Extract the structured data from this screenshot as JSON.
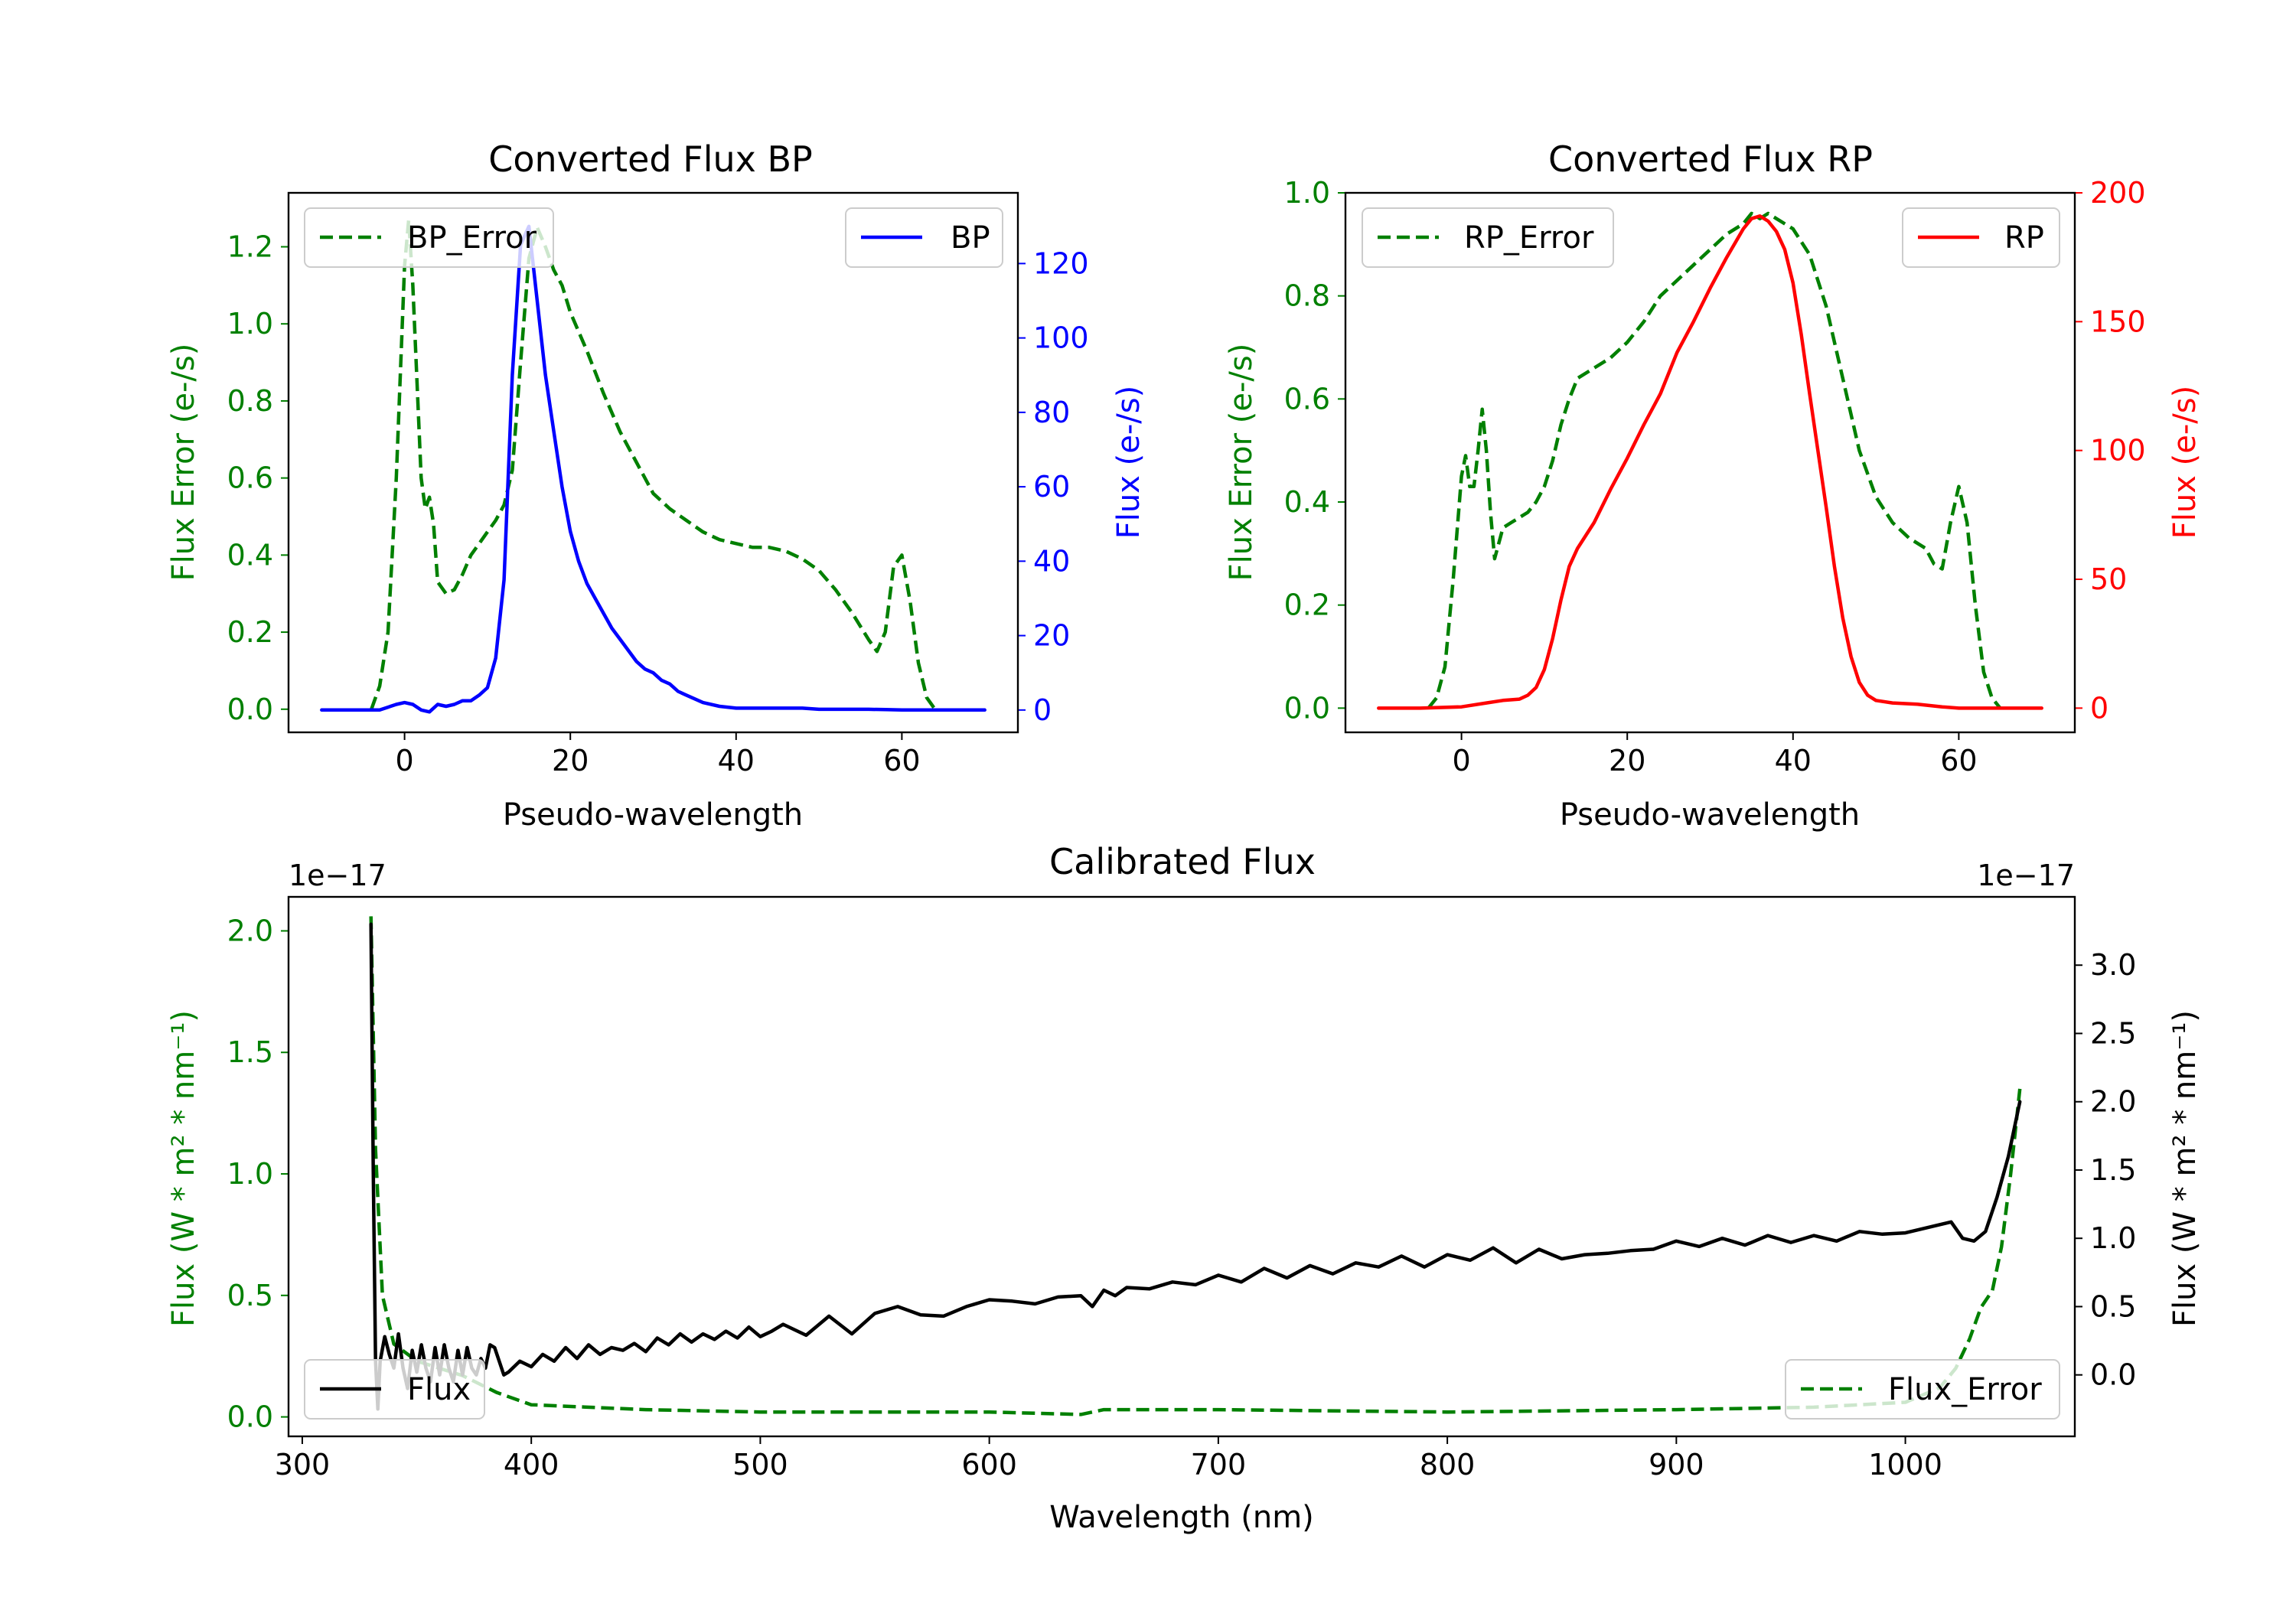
{
  "colors": {
    "bp": "#0000ff",
    "rp": "#ff0000",
    "error": "#008000",
    "flux": "#000000",
    "axis": "#000000"
  },
  "chart_data": [
    {
      "id": "bp",
      "type": "line",
      "title": "Converted Flux BP",
      "xlabel": "Pseudo-wavelength",
      "ylabel_left": "Flux Error (e-/s)",
      "ylabel_right": "Flux (e-/s)",
      "xlim": [
        -14,
        74
      ],
      "ylim_left": [
        -0.06,
        1.34
      ],
      "ylim_right": [
        -6,
        139
      ],
      "xticks": [
        0,
        20,
        40,
        60
      ],
      "yticks_left": [
        0.0,
        0.2,
        0.4,
        0.6,
        0.8,
        1.0,
        1.2
      ],
      "yticks_right": [
        0,
        20,
        40,
        60,
        80,
        100,
        120
      ],
      "legend_left": {
        "label": "BP_Error",
        "position": "upper left"
      },
      "legend_right": {
        "label": "BP",
        "position": "upper right"
      },
      "series": [
        {
          "name": "BP_Error",
          "axis": "left",
          "style": "dashed",
          "color": "#008000",
          "x": [
            -4,
            -3,
            -2,
            -1,
            0,
            0.5,
            1,
            2,
            2.5,
            3,
            3.5,
            4,
            5,
            6,
            7,
            8,
            9,
            10,
            11,
            12,
            13,
            14,
            15,
            16,
            17,
            18,
            19,
            20,
            22,
            24,
            26,
            28,
            30,
            32,
            34,
            36,
            38,
            40,
            42,
            44,
            46,
            48,
            50,
            52,
            54,
            56,
            57,
            58,
            59,
            60,
            61,
            62,
            63,
            64
          ],
          "y": [
            0.0,
            0.06,
            0.2,
            0.6,
            1.15,
            1.27,
            1.1,
            0.6,
            0.52,
            0.55,
            0.48,
            0.33,
            0.3,
            0.31,
            0.35,
            0.4,
            0.43,
            0.46,
            0.49,
            0.53,
            0.62,
            0.9,
            1.17,
            1.25,
            1.2,
            1.14,
            1.1,
            1.03,
            0.93,
            0.82,
            0.72,
            0.64,
            0.56,
            0.52,
            0.49,
            0.46,
            0.44,
            0.43,
            0.42,
            0.42,
            0.41,
            0.39,
            0.36,
            0.31,
            0.25,
            0.18,
            0.15,
            0.2,
            0.37,
            0.4,
            0.28,
            0.12,
            0.03,
            0.0
          ]
        },
        {
          "name": "BP",
          "axis": "right",
          "style": "solid",
          "color": "#0000ff",
          "x": [
            -10,
            -6,
            -3,
            -1,
            0,
            1,
            2,
            3,
            4,
            5,
            6,
            7,
            8,
            9,
            10,
            11,
            12,
            13,
            14,
            15,
            16,
            17,
            18,
            19,
            20,
            21,
            22,
            23,
            24,
            25,
            26,
            27,
            28,
            29,
            30,
            31,
            32,
            33,
            34,
            36,
            38,
            40,
            42,
            44,
            46,
            48,
            50,
            52,
            54,
            56,
            58,
            60,
            62,
            65,
            70
          ],
          "y": [
            0,
            0,
            0,
            1.5,
            2,
            1.5,
            0,
            -0.5,
            1.5,
            1,
            1.5,
            2.5,
            2.5,
            4,
            6,
            14,
            35,
            90,
            125,
            130,
            110,
            90,
            75,
            60,
            48,
            40,
            34,
            30,
            26,
            22,
            19,
            16,
            13,
            11,
            10,
            8,
            7,
            5,
            4,
            2,
            1,
            0.5,
            0.5,
            0.5,
            0.5,
            0.5,
            0.2,
            0.2,
            0.2,
            0.2,
            0.1,
            0,
            0,
            0,
            0
          ]
        }
      ]
    },
    {
      "id": "rp",
      "type": "line",
      "title": "Converted Flux RP",
      "xlabel": "Pseudo-wavelength",
      "ylabel_left": "Flux Error (e-/s)",
      "ylabel_right": "Flux (e-/s)",
      "xlim": [
        -14,
        74
      ],
      "ylim_left": [
        -0.047,
        1.0
      ],
      "ylim_right": [
        -9.4,
        200
      ],
      "xticks": [
        0,
        20,
        40,
        60
      ],
      "yticks_left": [
        0.0,
        0.2,
        0.4,
        0.6,
        0.8,
        1.0
      ],
      "yticks_right": [
        0,
        50,
        100,
        150,
        200
      ],
      "legend_left": {
        "label": "RP_Error",
        "position": "upper left"
      },
      "legend_right": {
        "label": "RP",
        "position": "upper right"
      },
      "series": [
        {
          "name": "RP_Error",
          "axis": "left",
          "style": "dashed",
          "color": "#008000",
          "x": [
            -4,
            -3,
            -2,
            -1,
            0,
            0.5,
            1,
            1.5,
            2,
            2.5,
            3,
            3.5,
            4,
            5,
            6,
            7,
            8,
            9,
            10,
            11,
            12,
            13,
            14,
            16,
            18,
            20,
            22,
            24,
            26,
            28,
            30,
            32,
            34,
            35,
            36,
            37,
            38,
            40,
            42,
            44,
            46,
            48,
            50,
            52,
            54,
            56,
            57,
            58,
            59,
            60,
            61,
            62,
            63,
            64,
            65
          ],
          "y": [
            0.0,
            0.02,
            0.08,
            0.25,
            0.45,
            0.49,
            0.43,
            0.43,
            0.5,
            0.58,
            0.5,
            0.38,
            0.29,
            0.35,
            0.36,
            0.37,
            0.38,
            0.4,
            0.43,
            0.48,
            0.55,
            0.6,
            0.64,
            0.66,
            0.68,
            0.71,
            0.75,
            0.8,
            0.83,
            0.86,
            0.89,
            0.92,
            0.94,
            0.96,
            0.95,
            0.96,
            0.95,
            0.93,
            0.88,
            0.78,
            0.64,
            0.5,
            0.41,
            0.36,
            0.33,
            0.31,
            0.28,
            0.27,
            0.36,
            0.43,
            0.36,
            0.2,
            0.07,
            0.02,
            0.0
          ]
        },
        {
          "name": "RP",
          "axis": "right",
          "style": "solid",
          "color": "#ff0000",
          "x": [
            -10,
            -5,
            0,
            3,
            5,
            7,
            8,
            9,
            10,
            11,
            12,
            13,
            14,
            16,
            18,
            20,
            22,
            24,
            26,
            28,
            30,
            32,
            34,
            35,
            36,
            37,
            38,
            39,
            40,
            41,
            42,
            43,
            44,
            45,
            46,
            47,
            48,
            49,
            50,
            52,
            55,
            58,
            60,
            65,
            70
          ],
          "y": [
            0,
            0,
            0.5,
            2,
            3,
            3.5,
            5,
            8,
            15,
            27,
            42,
            55,
            62,
            72,
            85,
            97,
            110,
            122,
            138,
            150,
            163,
            175,
            186,
            190,
            191,
            189,
            185,
            178,
            165,
            145,
            122,
            100,
            78,
            55,
            35,
            20,
            10,
            5,
            3,
            2,
            1.5,
            0.5,
            0,
            0,
            0
          ]
        }
      ]
    },
    {
      "id": "calibrated",
      "type": "line",
      "title": "Calibrated Flux",
      "xlabel": "Wavelength (nm)",
      "ylabel_left": "Flux (W * m² * nm⁻¹)",
      "ylabel_right": "Flux (W * m² * nm⁻¹)",
      "offset_left": "1e−17",
      "offset_right": "1e−17",
      "xlim": [
        294,
        1074
      ],
      "ylim_left": [
        -0.08,
        2.14
      ],
      "ylim_right": [
        -0.45,
        3.5
      ],
      "xticks": [
        300,
        400,
        500,
        600,
        700,
        800,
        900,
        1000
      ],
      "yticks_left": [
        0.0,
        0.5,
        1.0,
        1.5,
        2.0
      ],
      "yticks_right": [
        0.0,
        0.5,
        1.0,
        1.5,
        2.0,
        2.5,
        3.0
      ],
      "legend_left": {
        "label": "Flux",
        "position": "lower left"
      },
      "legend_right": {
        "label": "Flux_Error",
        "position": "lower right"
      },
      "series": [
        {
          "name": "Flux_Error",
          "axis": "left",
          "style": "dashed",
          "color": "#008000",
          "x": [
            330,
            332,
            335,
            340,
            350,
            360,
            370,
            385,
            400,
            450,
            500,
            550,
            600,
            640,
            650,
            700,
            800,
            900,
            960,
            1000,
            1015,
            1022,
            1028,
            1033,
            1038,
            1042,
            1046,
            1050
          ],
          "y": [
            2.06,
            1.1,
            0.5,
            0.3,
            0.23,
            0.2,
            0.17,
            0.1,
            0.05,
            0.03,
            0.02,
            0.02,
            0.02,
            0.01,
            0.03,
            0.03,
            0.02,
            0.03,
            0.04,
            0.06,
            0.12,
            0.2,
            0.32,
            0.45,
            0.52,
            0.7,
            1.0,
            1.35
          ]
        },
        {
          "name": "Flux",
          "axis": "right",
          "style": "solid",
          "color": "#000000",
          "x": [
            330,
            331,
            332,
            333,
            334,
            336,
            338,
            340,
            342,
            344,
            346,
            348,
            350,
            352,
            354,
            356,
            358,
            360,
            362,
            364,
            366,
            368,
            370,
            372,
            374,
            376,
            378,
            380,
            382,
            384,
            386,
            388,
            390,
            395,
            400,
            405,
            410,
            415,
            420,
            425,
            430,
            435,
            440,
            445,
            450,
            455,
            460,
            465,
            470,
            475,
            480,
            485,
            490,
            495,
            500,
            505,
            510,
            520,
            530,
            540,
            550,
            560,
            570,
            580,
            590,
            600,
            610,
            620,
            630,
            640,
            645,
            650,
            655,
            660,
            670,
            680,
            690,
            700,
            710,
            720,
            730,
            740,
            750,
            760,
            770,
            780,
            790,
            800,
            810,
            820,
            830,
            840,
            850,
            860,
            870,
            880,
            890,
            900,
            910,
            920,
            930,
            940,
            950,
            960,
            970,
            980,
            990,
            1000,
            1010,
            1020,
            1025,
            1030,
            1035,
            1040,
            1045,
            1050
          ],
          "y": [
            3.3,
            1.5,
            0.1,
            -0.25,
            0.1,
            0.28,
            0.15,
            0.05,
            0.3,
            0.05,
            -0.1,
            0.18,
            0.02,
            0.22,
            0.05,
            -0.05,
            0.2,
            0.0,
            0.22,
            0.05,
            -0.05,
            0.18,
            0.0,
            0.2,
            0.05,
            0.0,
            0.12,
            0.05,
            0.22,
            0.2,
            0.1,
            0.0,
            0.02,
            0.1,
            0.06,
            0.15,
            0.1,
            0.2,
            0.12,
            0.22,
            0.15,
            0.2,
            0.18,
            0.23,
            0.17,
            0.27,
            0.22,
            0.3,
            0.24,
            0.3,
            0.26,
            0.32,
            0.27,
            0.35,
            0.28,
            0.32,
            0.37,
            0.29,
            0.43,
            0.3,
            0.45,
            0.5,
            0.44,
            0.43,
            0.5,
            0.55,
            0.54,
            0.52,
            0.57,
            0.58,
            0.5,
            0.62,
            0.58,
            0.64,
            0.63,
            0.68,
            0.66,
            0.73,
            0.68,
            0.78,
            0.71,
            0.8,
            0.74,
            0.82,
            0.79,
            0.87,
            0.79,
            0.88,
            0.84,
            0.93,
            0.82,
            0.92,
            0.85,
            0.88,
            0.89,
            0.91,
            0.92,
            0.98,
            0.94,
            1.0,
            0.95,
            1.02,
            0.97,
            1.02,
            0.98,
            1.05,
            1.03,
            1.04,
            1.08,
            1.12,
            1.0,
            0.98,
            1.05,
            1.3,
            1.6,
            2.0
          ]
        }
      ]
    }
  ]
}
